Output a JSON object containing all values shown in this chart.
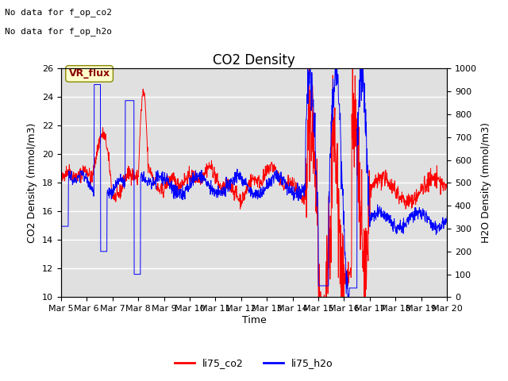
{
  "title": "CO2 Density",
  "xlabel": "Time",
  "ylabel_left": "CO2 Density (mmol/m3)",
  "ylabel_right": "H2O Density (mmol/m3)",
  "ylim_left": [
    10,
    26
  ],
  "ylim_right": [
    0,
    1000
  ],
  "yticks_left": [
    10,
    12,
    14,
    16,
    18,
    20,
    22,
    24,
    26
  ],
  "yticks_right": [
    0,
    100,
    200,
    300,
    400,
    500,
    600,
    700,
    800,
    900,
    1000
  ],
  "xtick_labels": [
    "Mar 5",
    "Mar 6",
    "Mar 7",
    "Mar 8",
    "Mar 9",
    "Mar 10",
    "Mar 11",
    "Mar 12",
    "Mar 13",
    "Mar 14",
    "Mar 15",
    "Mar 16",
    "Mar 17",
    "Mar 18",
    "Mar 19",
    "Mar 20"
  ],
  "annotation_lines": [
    "No data for f_op_co2",
    "No data for f_op_h2o"
  ],
  "vr_flux_label": "VR_flux",
  "legend_entries": [
    "li75_co2",
    "li75_h2o"
  ],
  "background_color": "#e0e0e0",
  "fig_bg": "#ffffff",
  "title_fontsize": 12,
  "label_fontsize": 9,
  "tick_fontsize": 8
}
